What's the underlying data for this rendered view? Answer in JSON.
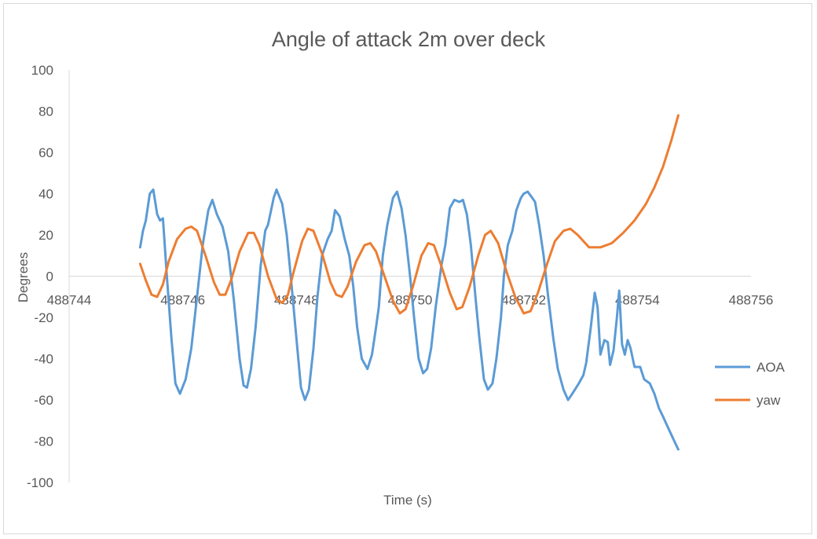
{
  "chart_data": {
    "type": "line",
    "title": "Angle of attack 2m over deck",
    "xlabel": "Time (s)",
    "ylabel": "Degrees",
    "xlim": [
      488744,
      488756
    ],
    "ylim": [
      -100,
      100
    ],
    "x_ticks": [
      "488744",
      "488746",
      "488748",
      "488750",
      "488752",
      "488754",
      "488756"
    ],
    "y_ticks": [
      "100",
      "80",
      "60",
      "40",
      "20",
      "0",
      "-20",
      "-40",
      "-60",
      "-80",
      "-100"
    ],
    "legend_position": "right",
    "grid": false,
    "series": [
      {
        "name": "AOA",
        "color": "#5b9bd5",
        "points": [
          [
            488745.25,
            14
          ],
          [
            488745.3,
            22
          ],
          [
            488745.35,
            27
          ],
          [
            488745.42,
            40
          ],
          [
            488745.48,
            42
          ],
          [
            488745.55,
            30
          ],
          [
            488745.6,
            27
          ],
          [
            488745.65,
            28
          ],
          [
            488745.72,
            0
          ],
          [
            488745.8,
            -30
          ],
          [
            488745.87,
            -52
          ],
          [
            488745.95,
            -57
          ],
          [
            488746.05,
            -50
          ],
          [
            488746.15,
            -35
          ],
          [
            488746.25,
            -10
          ],
          [
            488746.35,
            15
          ],
          [
            488746.45,
            32
          ],
          [
            488746.52,
            37
          ],
          [
            488746.6,
            30
          ],
          [
            488746.7,
            24
          ],
          [
            488746.8,
            12
          ],
          [
            488746.9,
            -12
          ],
          [
            488747.0,
            -40
          ],
          [
            488747.07,
            -53
          ],
          [
            488747.13,
            -54
          ],
          [
            488747.2,
            -45
          ],
          [
            488747.28,
            -25
          ],
          [
            488747.37,
            5
          ],
          [
            488747.45,
            22
          ],
          [
            488747.5,
            25
          ],
          [
            488747.6,
            38
          ],
          [
            488747.65,
            42
          ],
          [
            488747.75,
            35
          ],
          [
            488747.83,
            20
          ],
          [
            488747.9,
            0
          ],
          [
            488748.0,
            -30
          ],
          [
            488748.08,
            -54
          ],
          [
            488748.15,
            -60
          ],
          [
            488748.22,
            -55
          ],
          [
            488748.3,
            -35
          ],
          [
            488748.37,
            -10
          ],
          [
            488748.45,
            10
          ],
          [
            488748.55,
            18
          ],
          [
            488748.62,
            22
          ],
          [
            488748.68,
            32
          ],
          [
            488748.76,
            29
          ],
          [
            488748.85,
            18
          ],
          [
            488748.93,
            10
          ],
          [
            488749.0,
            -5
          ],
          [
            488749.07,
            -25
          ],
          [
            488749.15,
            -40
          ],
          [
            488749.25,
            -45
          ],
          [
            488749.33,
            -38
          ],
          [
            488749.4,
            -25
          ],
          [
            488749.45,
            -15
          ],
          [
            488749.52,
            10
          ],
          [
            488749.6,
            25
          ],
          [
            488749.7,
            38
          ],
          [
            488749.77,
            41
          ],
          [
            488749.85,
            33
          ],
          [
            488749.92,
            20
          ],
          [
            488750.0,
            0
          ],
          [
            488750.07,
            -20
          ],
          [
            488750.15,
            -40
          ],
          [
            488750.23,
            -47
          ],
          [
            488750.3,
            -45
          ],
          [
            488750.37,
            -35
          ],
          [
            488750.45,
            -15
          ],
          [
            488750.55,
            5
          ],
          [
            488750.62,
            15
          ],
          [
            488750.7,
            33
          ],
          [
            488750.78,
            37
          ],
          [
            488750.87,
            36
          ],
          [
            488750.93,
            37
          ],
          [
            488751.0,
            30
          ],
          [
            488751.07,
            15
          ],
          [
            488751.15,
            -10
          ],
          [
            488751.22,
            -30
          ],
          [
            488751.3,
            -50
          ],
          [
            488751.37,
            -55
          ],
          [
            488751.45,
            -52
          ],
          [
            488751.52,
            -40
          ],
          [
            488751.6,
            -20
          ],
          [
            488751.65,
            0
          ],
          [
            488751.72,
            15
          ],
          [
            488751.8,
            22
          ],
          [
            488751.87,
            32
          ],
          [
            488751.95,
            38
          ],
          [
            488752.0,
            40
          ],
          [
            488752.07,
            41
          ],
          [
            488752.15,
            38
          ],
          [
            488752.2,
            36
          ],
          [
            488752.27,
            25
          ],
          [
            488752.35,
            10
          ],
          [
            488752.43,
            -10
          ],
          [
            488752.52,
            -30
          ],
          [
            488752.6,
            -45
          ],
          [
            488752.7,
            -55
          ],
          [
            488752.78,
            -60
          ],
          [
            488752.83,
            -58
          ],
          [
            488752.9,
            -55
          ],
          [
            488752.97,
            -52
          ],
          [
            488753.05,
            -48
          ],
          [
            488753.1,
            -42
          ],
          [
            488753.18,
            -25
          ],
          [
            488753.25,
            -8
          ],
          [
            488753.3,
            -15
          ],
          [
            488753.35,
            -38
          ],
          [
            488753.42,
            -31
          ],
          [
            488753.48,
            -32
          ],
          [
            488753.52,
            -43
          ],
          [
            488753.58,
            -36
          ],
          [
            488753.64,
            -20
          ],
          [
            488753.68,
            -7
          ],
          [
            488753.73,
            -33
          ],
          [
            488753.78,
            -38
          ],
          [
            488753.83,
            -31
          ],
          [
            488753.88,
            -35
          ],
          [
            488753.95,
            -44
          ],
          [
            488754.05,
            -44
          ],
          [
            488754.12,
            -50
          ],
          [
            488754.22,
            -52
          ],
          [
            488754.3,
            -57
          ],
          [
            488754.38,
            -64
          ],
          [
            488754.45,
            -68
          ],
          [
            488754.55,
            -74
          ],
          [
            488754.65,
            -80
          ],
          [
            488754.72,
            -84
          ]
        ]
      },
      {
        "name": "yaw",
        "color": "#ed7d31",
        "points": [
          [
            488745.25,
            6
          ],
          [
            488745.35,
            -2
          ],
          [
            488745.45,
            -9
          ],
          [
            488745.55,
            -10
          ],
          [
            488745.65,
            -4
          ],
          [
            488745.75,
            7
          ],
          [
            488745.9,
            18
          ],
          [
            488746.05,
            23
          ],
          [
            488746.15,
            24
          ],
          [
            488746.25,
            22
          ],
          [
            488746.4,
            10
          ],
          [
            488746.55,
            -3
          ],
          [
            488746.65,
            -9
          ],
          [
            488746.75,
            -9
          ],
          [
            488746.85,
            -2
          ],
          [
            488747.0,
            12
          ],
          [
            488747.15,
            21
          ],
          [
            488747.25,
            21
          ],
          [
            488747.35,
            15
          ],
          [
            488747.5,
            0
          ],
          [
            488747.65,
            -11
          ],
          [
            488747.75,
            -13
          ],
          [
            488747.85,
            -9
          ],
          [
            488747.95,
            2
          ],
          [
            488748.1,
            17
          ],
          [
            488748.2,
            23
          ],
          [
            488748.3,
            22
          ],
          [
            488748.45,
            11
          ],
          [
            488748.6,
            -3
          ],
          [
            488748.7,
            -9
          ],
          [
            488748.8,
            -10
          ],
          [
            488748.9,
            -5
          ],
          [
            488749.05,
            7
          ],
          [
            488749.2,
            15
          ],
          [
            488749.3,
            16
          ],
          [
            488749.4,
            12
          ],
          [
            488749.55,
            0
          ],
          [
            488749.7,
            -12
          ],
          [
            488749.82,
            -18
          ],
          [
            488749.92,
            -16
          ],
          [
            488750.05,
            -5
          ],
          [
            488750.2,
            10
          ],
          [
            488750.32,
            16
          ],
          [
            488750.42,
            15
          ],
          [
            488750.55,
            5
          ],
          [
            488750.7,
            -8
          ],
          [
            488750.82,
            -16
          ],
          [
            488750.92,
            -15
          ],
          [
            488751.05,
            -5
          ],
          [
            488751.2,
            10
          ],
          [
            488751.32,
            20
          ],
          [
            488751.42,
            22
          ],
          [
            488751.55,
            16
          ],
          [
            488751.7,
            2
          ],
          [
            488751.85,
            -10
          ],
          [
            488752.0,
            -18
          ],
          [
            488752.12,
            -17
          ],
          [
            488752.25,
            -8
          ],
          [
            488752.4,
            5
          ],
          [
            488752.55,
            17
          ],
          [
            488752.7,
            22
          ],
          [
            488752.82,
            23
          ],
          [
            488752.95,
            20
          ],
          [
            488753.15,
            14
          ],
          [
            488753.35,
            14
          ],
          [
            488753.55,
            16
          ],
          [
            488753.75,
            21
          ],
          [
            488753.95,
            27
          ],
          [
            488754.15,
            35
          ],
          [
            488754.3,
            43
          ],
          [
            488754.45,
            53
          ],
          [
            488754.6,
            66
          ],
          [
            488754.72,
            78
          ]
        ]
      }
    ]
  }
}
